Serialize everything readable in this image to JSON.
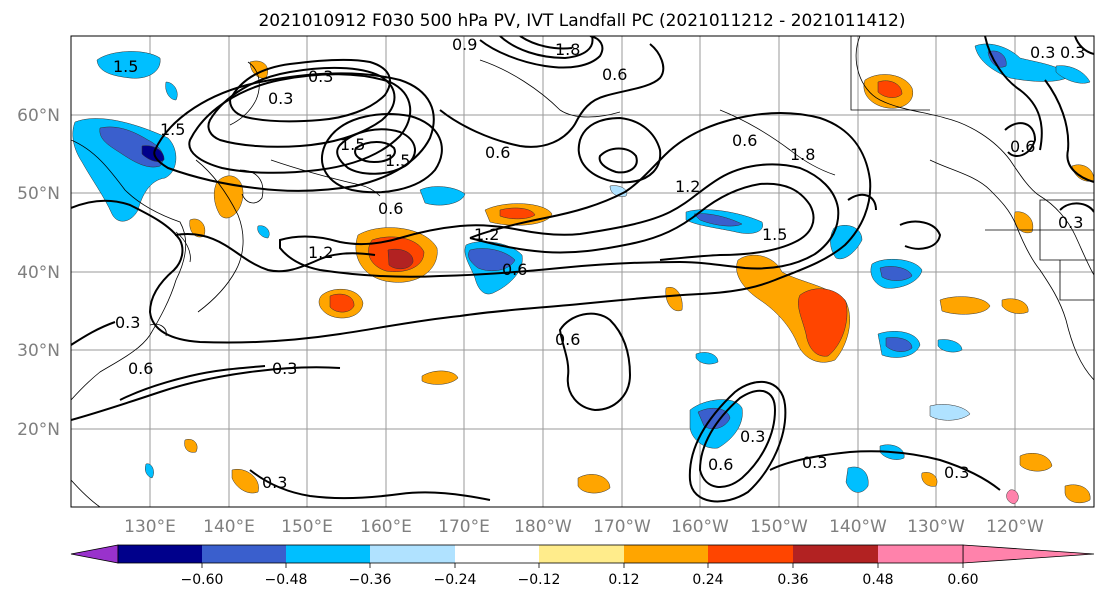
{
  "title": "2021010912 F030 500 hPa PV, IVT Landfall PC (2021011212 - 2021011412)",
  "map": {
    "lon_ticks": [
      "130°E",
      "140°E",
      "150°E",
      "160°E",
      "170°E",
      "180°W",
      "170°W",
      "160°W",
      "150°W",
      "140°W",
      "130°W",
      "120°W"
    ],
    "lat_ticks": [
      "60°N",
      "50°N",
      "40°N",
      "30°N",
      "20°N"
    ],
    "grid": true,
    "contour_labels": [
      "1.5",
      "1.5",
      "0.3",
      "0.3",
      "0.9",
      "1.8",
      "0.6",
      "0.3",
      "0.6",
      "1.5",
      "1.5",
      "0.6",
      "0.6",
      "1.2",
      "1.8",
      "0.6",
      "1.2",
      "0.6",
      "1.5",
      "1.2",
      "0.6",
      "0.3",
      "0.3",
      "0.6",
      "0.3",
      "0.3",
      "0.3",
      "0.6",
      "0.3",
      "0.3",
      "0.3"
    ]
  },
  "colorbar": {
    "ticks": [
      "−0.60",
      "−0.48",
      "−0.36",
      "−0.24",
      "−0.12",
      "0.12",
      "0.24",
      "0.36",
      "0.48",
      "0.60"
    ],
    "colors": [
      "#9932cc",
      "#00008b",
      "#3a5fcd",
      "#00bfff",
      "#b0e2ff",
      "#ffffff",
      "#ffec8b",
      "#ffa500",
      "#ff4500",
      "#b22222",
      "#ff82ab"
    ]
  }
}
